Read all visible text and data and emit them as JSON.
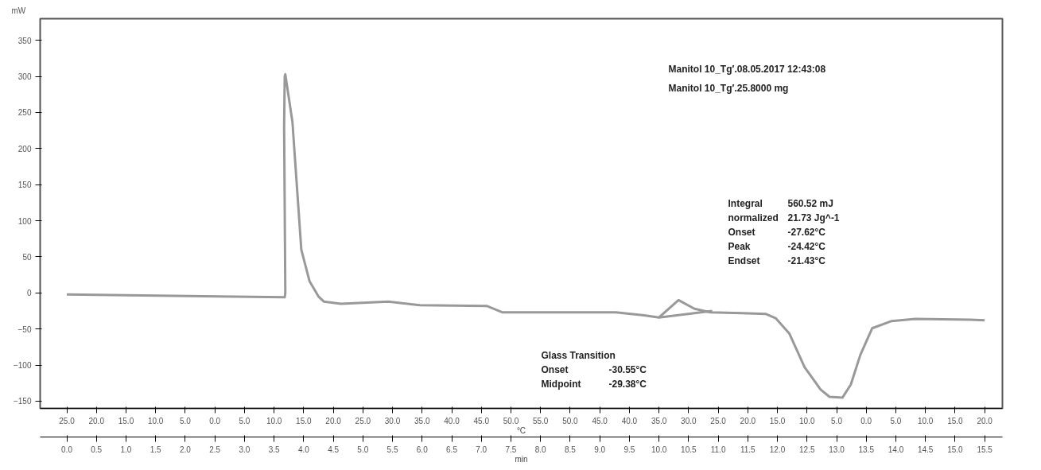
{
  "chart_data": {
    "type": "line",
    "ylabel": "mW",
    "xlabel": "min",
    "x2label": "°C",
    "xlim": [
      -0.45,
      15.8
    ],
    "ylim": [
      -160,
      380
    ],
    "xticks": [
      {
        "value": 0,
        "label": "0.0"
      },
      {
        "value": 0.5,
        "label": "0.5"
      },
      {
        "value": 1,
        "label": "1.0"
      },
      {
        "value": 1.5,
        "label": "1.5"
      },
      {
        "value": 2,
        "label": "2.0"
      },
      {
        "value": 2.5,
        "label": "2.5"
      },
      {
        "value": 3,
        "label": "3.0"
      },
      {
        "value": 3.5,
        "label": "3.5"
      },
      {
        "value": 4,
        "label": "4.0"
      },
      {
        "value": 4.5,
        "label": "4.5"
      },
      {
        "value": 5,
        "label": "5.0"
      },
      {
        "value": 5.5,
        "label": "5.5"
      },
      {
        "value": 6,
        "label": "6.0"
      },
      {
        "value": 6.5,
        "label": "6.5"
      },
      {
        "value": 7,
        "label": "7.0"
      },
      {
        "value": 7.5,
        "label": "7.5"
      },
      {
        "value": 8,
        "label": "8.0"
      },
      {
        "value": 8.5,
        "label": "8.5"
      },
      {
        "value": 9,
        "label": "9.0"
      },
      {
        "value": 9.5,
        "label": "9.5"
      },
      {
        "value": 10,
        "label": "10.0"
      },
      {
        "value": 10.5,
        "label": "10.5"
      },
      {
        "value": 11,
        "label": "11.0"
      },
      {
        "value": 11.5,
        "label": "11.5"
      },
      {
        "value": 12,
        "label": "12.0"
      },
      {
        "value": 12.5,
        "label": "12.5"
      },
      {
        "value": 13,
        "label": "13.0"
      },
      {
        "value": 13.5,
        "label": "13.5"
      },
      {
        "value": 14,
        "label": "14.0"
      },
      {
        "value": 14.5,
        "label": "14.5"
      },
      {
        "value": 15,
        "label": "15.0"
      },
      {
        "value": 15.5,
        "label": "15.5"
      }
    ],
    "yticks": [
      -150,
      -100,
      -50,
      0,
      50,
      100,
      150,
      200,
      250,
      300,
      350
    ],
    "grid": false,
    "series": [
      {
        "color": "#999999",
        "x": [
          0,
          3.68,
          3.69,
          3.67,
          3.68,
          3.69,
          3.81,
          3.96,
          4.1,
          4.25,
          4.34,
          4.63,
          5.43,
          5.96,
          7.09,
          7.36,
          9.27,
          9.75,
          10.0,
          10.33,
          10.6,
          10.87,
          11.4,
          11.8,
          11.97,
          12.2,
          12.46,
          12.73,
          12.88,
          13.1,
          13.24,
          13.4,
          13.6,
          13.93,
          14.33,
          15.26,
          15.5
        ],
        "values": [
          -2,
          -6,
          0,
          230,
          300,
          303,
          237,
          60,
          16,
          -5,
          -12,
          -15,
          -12,
          -17,
          -18,
          -27,
          -27,
          -31,
          -34,
          -10,
          -22,
          -27,
          -28,
          -29,
          -35,
          -56,
          -103,
          -134,
          -144,
          -145,
          -127,
          -86,
          -49,
          -39,
          -36,
          -37,
          -38
        ]
      },
      {
        "color": "#999999",
        "x": [
          10.0,
          10.9
        ],
        "values": [
          -34,
          -25
        ]
      }
    ],
    "annotations": [
      "Manitol 10_Tg′.08.05.2017 12:43:08",
      "Manitol 10_Tg′.25.8000 mg",
      "Integral\t560.52 mJ",
      "normalized\t21.73 Jg^-1",
      "Onset\t-27.62°C",
      "Peak\t-24.42°C",
      "Endset\t-21.43°C",
      "Glass Transition",
      "Onset\t-30.55°C",
      "Midpoint\t-29.38°C",
      "25.0",
      "20.0",
      "15.0",
      "10.0",
      "5.0",
      "0.0",
      "5.0",
      "10.0",
      "15.0",
      "20.0",
      "25.0",
      "30.0",
      "35.0",
      "40.0",
      "45.0",
      "50.0",
      "55.0",
      "50.0",
      "45.0",
      "40.0",
      "35.0",
      "30.0",
      "25.0",
      "20.0",
      "15.0",
      "10.0",
      "5.0",
      "0.0",
      "5.0",
      "10.0",
      "15.0",
      "20.0"
    ]
  }
}
